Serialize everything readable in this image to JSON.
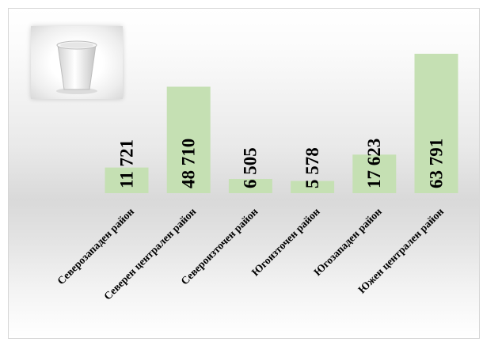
{
  "chart_data": {
    "type": "bar",
    "categories": [
      "Северозападен район",
      "Северен централен район",
      "Североизточен район",
      "Югоизточен район",
      "Югозападен район",
      "Южен централен район"
    ],
    "values": [
      11721,
      48710,
      6505,
      5578,
      17623,
      63791
    ],
    "value_labels": [
      "11 721",
      "48 710",
      "6 505",
      "5 578",
      "17 623",
      "63 791"
    ],
    "ylim": [
      0,
      67000
    ],
    "grid": false,
    "legend": "none",
    "bar_color": "#c5e0b3"
  },
  "decor": {
    "logo_icon": "cup-icon"
  }
}
